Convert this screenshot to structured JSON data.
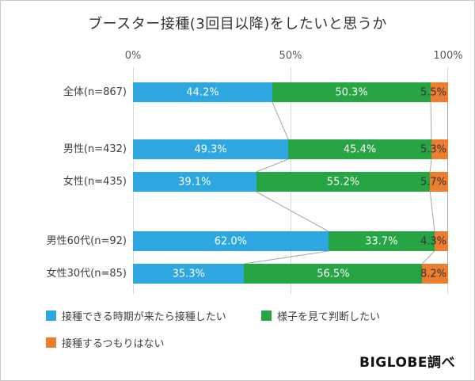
{
  "title": "ブースター接種(3回目以降)をしたいと思うか",
  "credit": "BIGLOBE調べ",
  "axis": {
    "ticks": [
      "0%",
      "50%",
      "100%"
    ]
  },
  "legend_items": [
    {
      "label": "接種できる時期が来たら接種したい",
      "color": "#2ea7e0"
    },
    {
      "label": "様子を見て判断したい",
      "color": "#27a545"
    },
    {
      "label": "接種するつもりはない",
      "color": "#ed7d31"
    }
  ],
  "chart_data": {
    "type": "bar",
    "subtype": "stacked-horizontal",
    "title": "ブースター接種(3回目以降)をしたいと思うか",
    "unit": "%",
    "xlim": [
      0,
      100
    ],
    "x_ticks": [
      0,
      50,
      100
    ],
    "grid": true,
    "legend_position": "bottom",
    "categories": [
      "全体(n=867)",
      "男性(n=432)",
      "女性(n=435)",
      "男性60代(n=92)",
      "女性30代(n=85)"
    ],
    "series": [
      {
        "name": "接種できる時期が来たら接種したい",
        "color": "#2ea7e0",
        "label_color": "#ffffff",
        "values": [
          44.2,
          49.3,
          39.1,
          62.0,
          35.3
        ]
      },
      {
        "name": "様子を見て判断したい",
        "color": "#27a545",
        "label_color": "#ffffff",
        "values": [
          50.3,
          45.4,
          55.2,
          33.7,
          56.5
        ]
      },
      {
        "name": "接種するつもりはない",
        "color": "#ed7d31",
        "label_color": "#333333",
        "values": [
          5.5,
          5.3,
          5.7,
          4.3,
          8.2
        ]
      }
    ]
  }
}
